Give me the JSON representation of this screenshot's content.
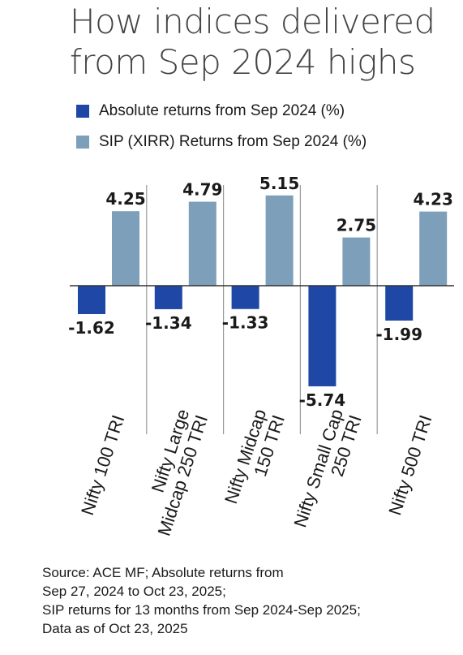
{
  "chart_data": {
    "type": "bar",
    "title_lines": [
      "How indices delivered",
      "from Sep 2024 highs"
    ],
    "categories": [
      "Nifty 100 TRI",
      "Nifty Large Midcap 250 TRI",
      "Nifty Midcap 150 TRI",
      "Nifty Small Cap 250 TRI",
      "Nifty 500 TRI"
    ],
    "category_label_lines": [
      [
        "Nifty 100 TRI"
      ],
      [
        "Nifty Large",
        "Midcap 250 TRI"
      ],
      [
        "Nifty Midcap",
        "150 TRI"
      ],
      [
        "Nifty Small Cap",
        "250 TRI"
      ],
      [
        "Nifty 500 TRI"
      ]
    ],
    "series": [
      {
        "name": "Absolute returns  from Sep 2024 (%)",
        "color": "#1f47a6",
        "values": [
          -1.62,
          -1.34,
          -1.33,
          -5.74,
          -1.99
        ],
        "labels": [
          "-1.62",
          "-1.34",
          "-1.33",
          "-5.74",
          "-1.99"
        ]
      },
      {
        "name": "SIP (XIRR) Returns  from Sep 2024 (%)",
        "color": "#7d9fb9",
        "values": [
          4.25,
          4.79,
          5.15,
          2.75,
          4.23
        ],
        "labels": [
          "4.25",
          "4.79",
          "5.15",
          "2.75",
          "4.23"
        ]
      }
    ],
    "legend_position": "top",
    "grid": false,
    "ylim": [
      -6,
      5.5
    ]
  },
  "source_lines": [
    "Source: ACE MF; Absolute returns from",
    "Sep 27, 2024 to Oct 23, 2025;",
    "SIP returns for 13 months from Sep 2024-Sep 2025;",
    "Data as of Oct 23, 2025"
  ]
}
